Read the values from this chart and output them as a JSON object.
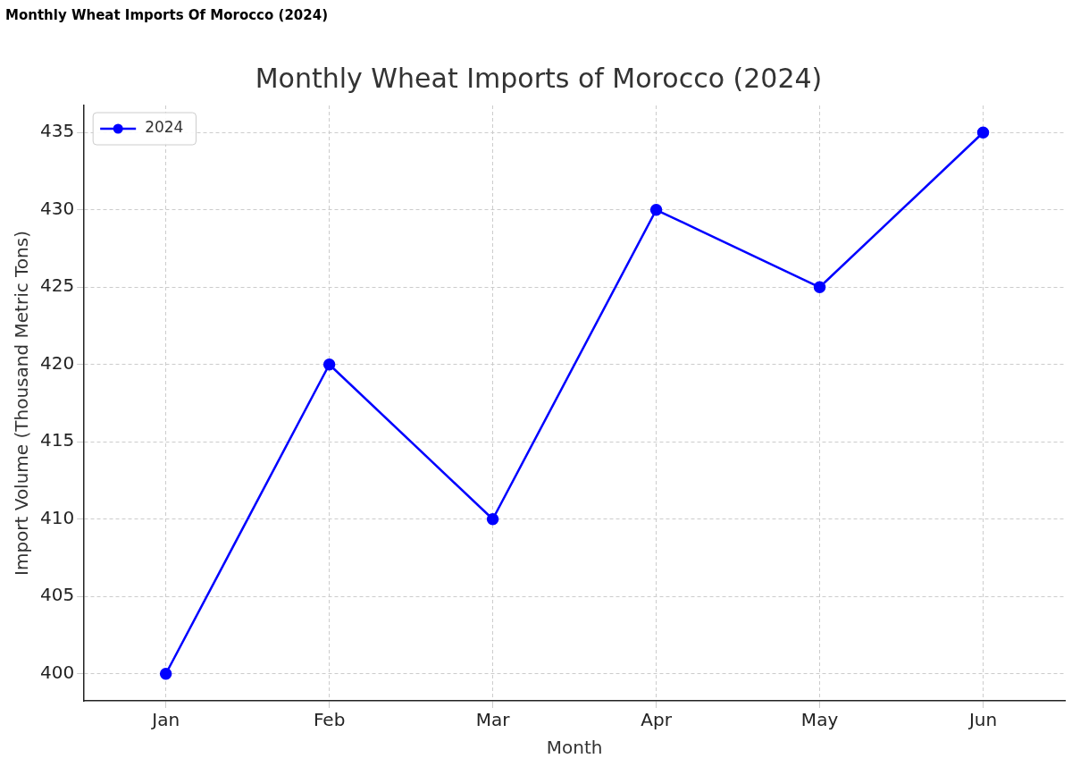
{
  "chart_data": {
    "type": "line",
    "title": "Monthly Wheat Imports Of Morocco (2024)",
    "subtitle": "Monthly Wheat Imports of Morocco (2024)",
    "xlabel": "Month",
    "ylabel": "Import Volume (Thousand Metric Tons)",
    "categories": [
      "Jan",
      "Feb",
      "Mar",
      "Apr",
      "May",
      "Jun"
    ],
    "series": [
      {
        "name": "2024",
        "color": "#0000ff",
        "values": [
          400,
          420,
          410,
          430,
          425,
          435
        ]
      }
    ],
    "ylim": [
      398.25,
      436.75
    ],
    "yticks": [
      400,
      405,
      410,
      415,
      420,
      425,
      430,
      435
    ],
    "grid": true,
    "legend": "top left",
    "marker": "circle",
    "line_style": "solid"
  }
}
